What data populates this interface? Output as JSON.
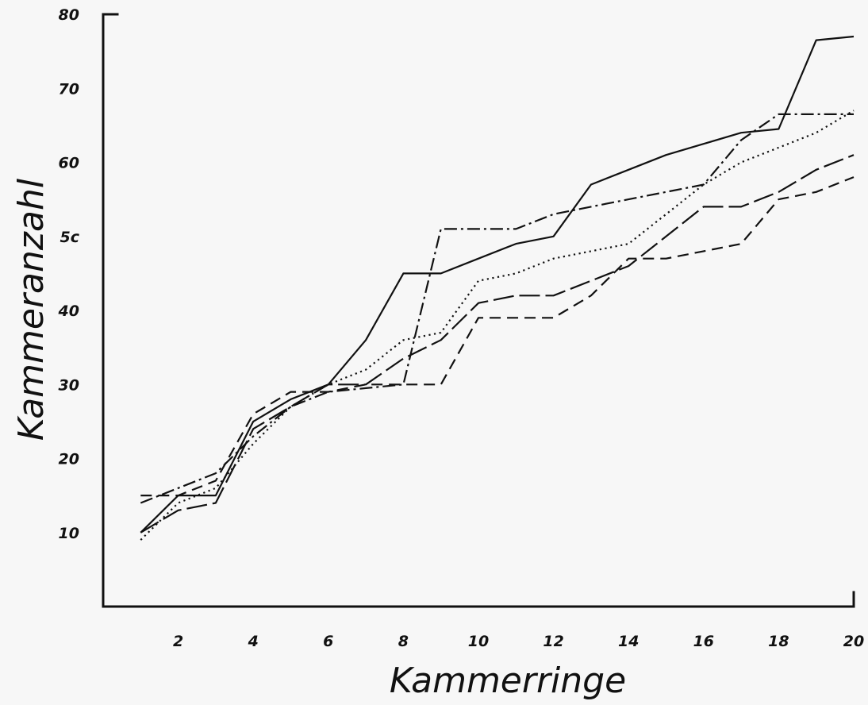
{
  "chart_data": {
    "type": "line",
    "title": "",
    "xlabel": "Kammerringe",
    "ylabel": "Kammeranzahl",
    "xlim": [
      0,
      20
    ],
    "ylim": [
      0,
      80
    ],
    "x_ticks": [
      2,
      4,
      6,
      8,
      10,
      12,
      14,
      16,
      18,
      20
    ],
    "y_ticks": [
      10,
      20,
      30,
      40,
      50,
      60,
      70,
      80
    ],
    "y_tick_labels": [
      "10",
      "20",
      "30",
      "40",
      "5c",
      "60",
      "70",
      "80"
    ],
    "grid": false,
    "legend": "none",
    "x": [
      1,
      2,
      3,
      4,
      5,
      6,
      7,
      8,
      9,
      10,
      11,
      12,
      13,
      14,
      15,
      16,
      17,
      18,
      19,
      20
    ],
    "series": [
      {
        "style": "solid",
        "values": [
          10,
          15,
          15,
          25,
          28,
          30,
          36,
          45,
          45,
          47,
          49,
          50,
          57,
          59,
          61,
          62.5,
          64,
          64.5,
          76.5,
          77
        ]
      },
      {
        "style": "dashed",
        "values": [
          15,
          15,
          17,
          26,
          29,
          29,
          30,
          30,
          30,
          39,
          39,
          39,
          42,
          47,
          47,
          48,
          49,
          55,
          56,
          58
        ]
      },
      {
        "style": "dotted",
        "values": [
          9,
          14,
          16,
          22,
          27,
          30,
          32,
          36,
          37,
          44,
          45,
          47,
          48,
          49,
          53,
          57,
          60,
          62,
          64,
          67
        ]
      },
      {
        "style": "dash-dot",
        "values": [
          14,
          16,
          18,
          23,
          27,
          29,
          29.5,
          30,
          51,
          51,
          51,
          53,
          54,
          55,
          56,
          57,
          63,
          66.5,
          66.5,
          66.5
        ]
      },
      {
        "style": "long-dash",
        "values": [
          10,
          13,
          14,
          24,
          27,
          30,
          30,
          33.5,
          36,
          41,
          42,
          42,
          44,
          46,
          50,
          54,
          54,
          56,
          59,
          61
        ]
      }
    ]
  }
}
